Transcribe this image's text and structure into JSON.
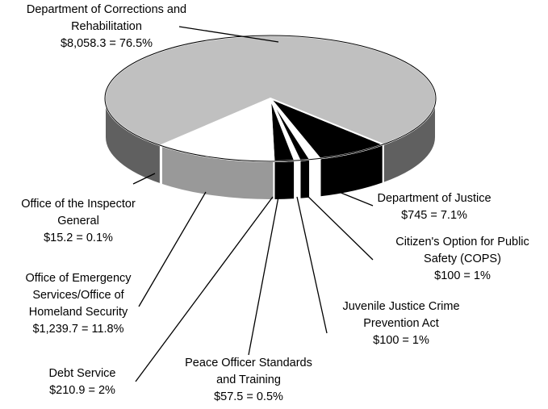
{
  "chart_data": {
    "type": "pie",
    "three_d": true,
    "categories": [
      "Department of Justice",
      "Citizen's Option for Public Safety (COPS)",
      "Juvenile Justice Crime Prevention Act",
      "Peace Officer Standards and Training",
      "Debt Service",
      "Office of Emergency Services/Office of Homeland Security",
      "Office of the Inspector General",
      "Department of Corrections and Rehabilitation"
    ],
    "values": [
      7.1,
      1,
      1,
      0.5,
      2,
      11.8,
      0.1,
      76.5
    ],
    "value_labels": [
      "$745 = 7.1%",
      "$100 = 1%",
      "$100 = 1%",
      "$57.5 = 0.5%",
      "$210.9 = 2%",
      "$1,239.7 = 11.8%",
      "$15.2 = 0.1%",
      "$8,058.3 = 76.5%"
    ],
    "colors": [
      "#000000",
      "#ffffff",
      "#000000",
      "#ffffff",
      "#000000",
      "#ffffff",
      "#ffffff",
      "#c0c0c0"
    ],
    "side_colors": [
      "#000000",
      "#ffffff",
      "#000000",
      "#ffffff",
      "#000000",
      "#999999",
      "#999999",
      "#606060"
    ]
  }
}
